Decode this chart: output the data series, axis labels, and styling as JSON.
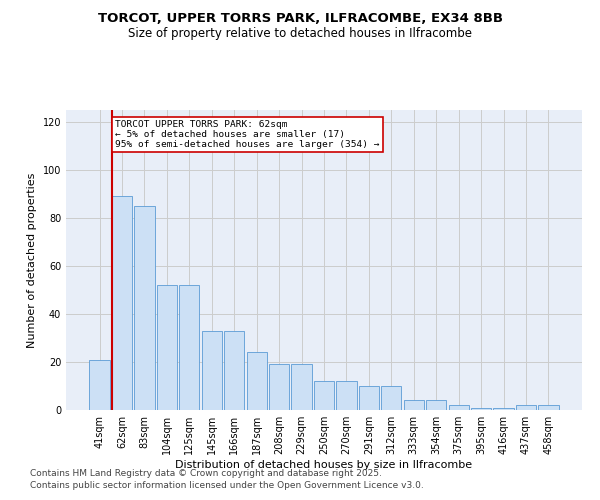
{
  "title1": "TORCOT, UPPER TORRS PARK, ILFRACOMBE, EX34 8BB",
  "title2": "Size of property relative to detached houses in Ilfracombe",
  "xlabel": "Distribution of detached houses by size in Ilfracombe",
  "ylabel": "Number of detached properties",
  "categories": [
    "41sqm",
    "62sqm",
    "83sqm",
    "104sqm",
    "125sqm",
    "145sqm",
    "166sqm",
    "187sqm",
    "208sqm",
    "229sqm",
    "250sqm",
    "270sqm",
    "291sqm",
    "312sqm",
    "333sqm",
    "354sqm",
    "375sqm",
    "395sqm",
    "416sqm",
    "437sqm",
    "458sqm"
  ],
  "values": [
    21,
    89,
    85,
    52,
    52,
    33,
    33,
    24,
    19,
    19,
    12,
    12,
    10,
    10,
    4,
    4,
    2,
    1,
    1,
    2,
    2
  ],
  "bar_color": "#cce0f5",
  "bar_edge_color": "#5b9bd5",
  "marker_index": 1,
  "marker_color": "#cc0000",
  "annotation_text": "TORCOT UPPER TORRS PARK: 62sqm\n← 5% of detached houses are smaller (17)\n95% of semi-detached houses are larger (354) →",
  "annotation_box_color": "#ffffff",
  "annotation_box_edge": "#cc0000",
  "ylim": [
    0,
    125
  ],
  "yticks": [
    0,
    20,
    40,
    60,
    80,
    100,
    120
  ],
  "grid_color": "#cccccc",
  "bg_color": "#e8eef8",
  "footer1": "Contains HM Land Registry data © Crown copyright and database right 2025.",
  "footer2": "Contains public sector information licensed under the Open Government Licence v3.0.",
  "title1_fontsize": 9.5,
  "title2_fontsize": 8.5,
  "xlabel_fontsize": 8,
  "ylabel_fontsize": 8,
  "tick_fontsize": 7,
  "footer_fontsize": 6.5
}
